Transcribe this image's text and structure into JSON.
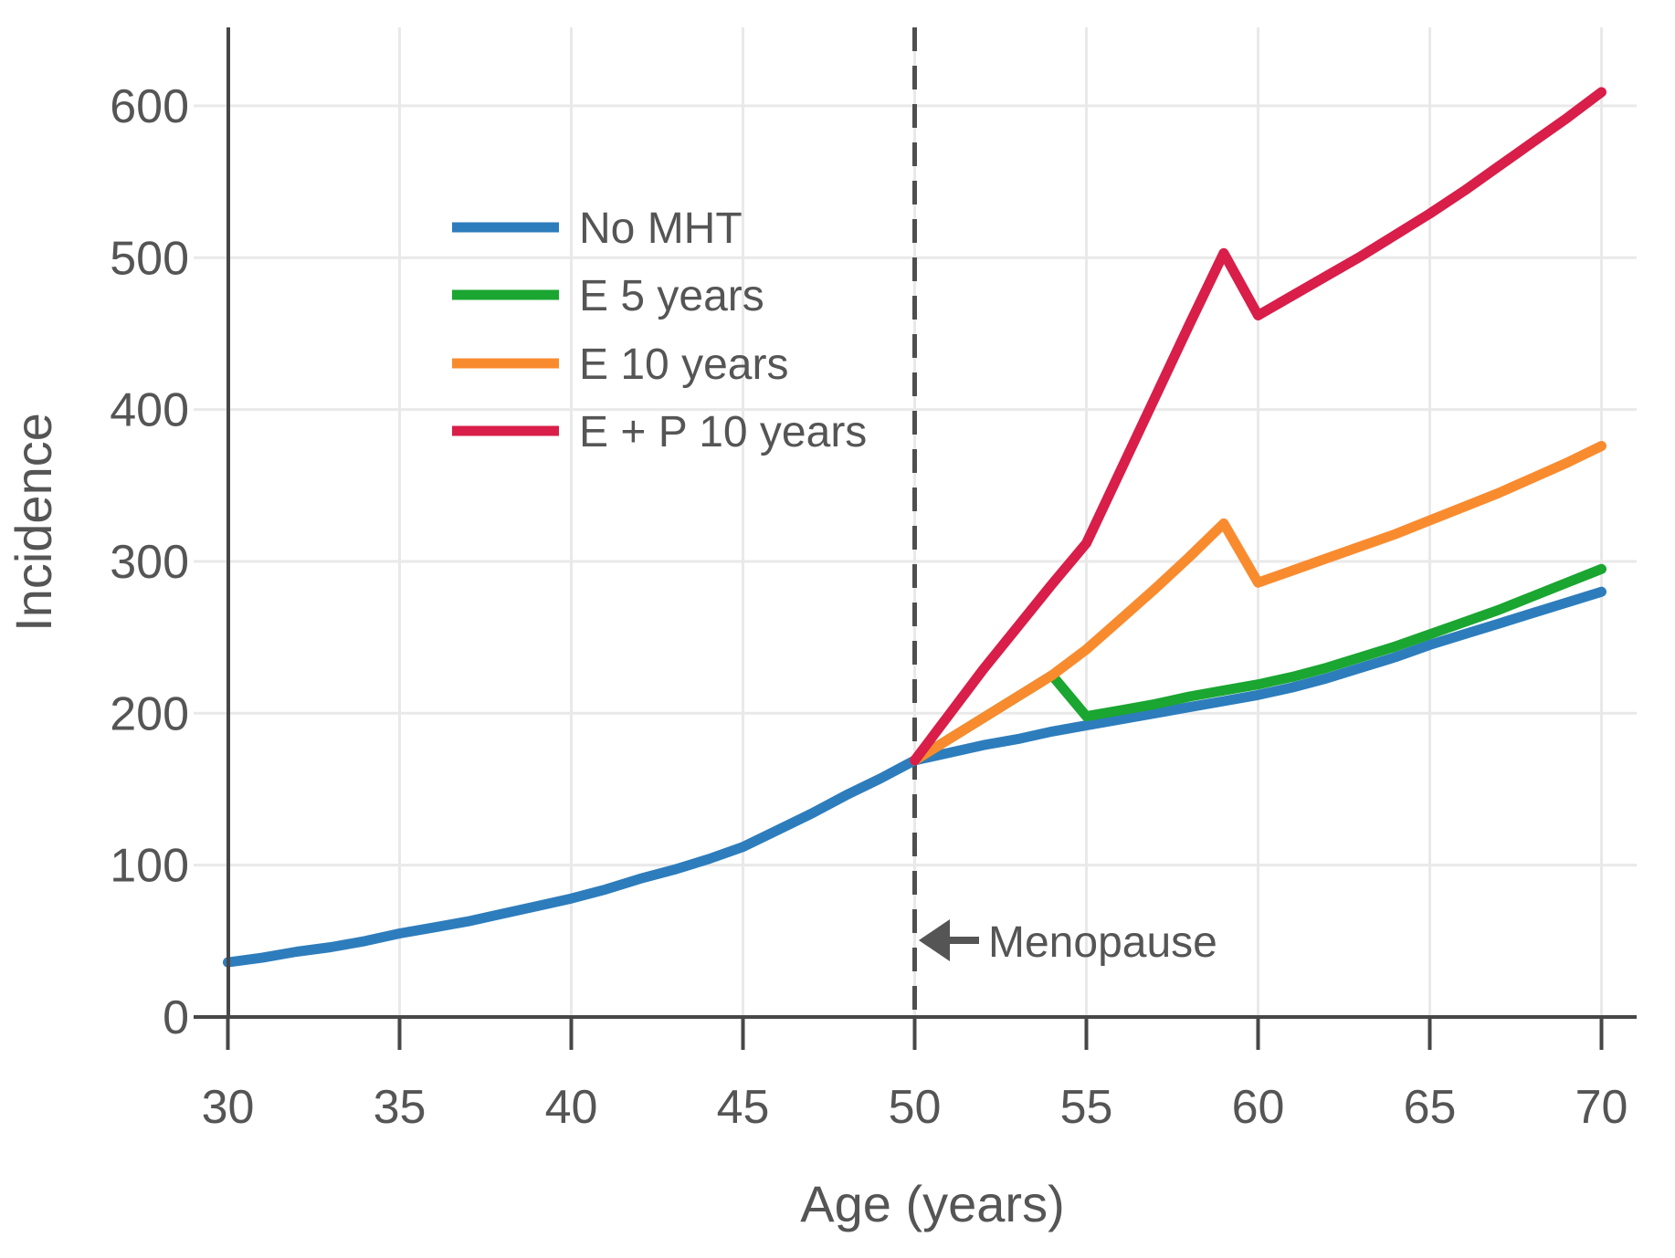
{
  "chart_data": {
    "type": "line",
    "title": "",
    "xlabel": "Age (years)",
    "ylabel": "Incidence",
    "x_ticks": [
      30,
      35,
      40,
      45,
      50,
      55,
      60,
      65,
      70
    ],
    "y_ticks": [
      0,
      100,
      200,
      300,
      400,
      500,
      600
    ],
    "xlim": [
      30,
      71
    ],
    "ylim": [
      0,
      651
    ],
    "grid": true,
    "legend_position": "upper-left-inside",
    "annotation": {
      "label": "Menopause",
      "arrow": "left-arrow",
      "x": 50,
      "y": 50
    },
    "menopause_line": {
      "x": 50,
      "style": "dashed"
    },
    "series": [
      {
        "name": "No MHT",
        "color": "#2d7dbc",
        "x": [
          30,
          31,
          32,
          33,
          34,
          35,
          36,
          37,
          38,
          39,
          40,
          41,
          42,
          43,
          44,
          45,
          46,
          47,
          48,
          49,
          50,
          51,
          52,
          53,
          54,
          55,
          56,
          57,
          58,
          59,
          60,
          61,
          62,
          63,
          64,
          65,
          66,
          67,
          68,
          69,
          70
        ],
        "y": [
          36,
          39,
          43,
          46,
          50,
          55,
          59,
          63,
          68,
          73,
          78,
          84,
          91,
          97,
          104,
          112,
          123,
          134,
          146,
          157,
          169,
          174,
          179,
          183,
          188,
          192,
          196,
          200,
          204,
          208,
          212,
          217,
          223,
          230,
          237,
          245,
          252,
          259,
          266,
          273,
          280
        ]
      },
      {
        "name": "E 5 years",
        "color": "#1aa630",
        "x": [
          50,
          51,
          52,
          53,
          54,
          55,
          56,
          57,
          58,
          59,
          60,
          61,
          62,
          63,
          64,
          65,
          66,
          67,
          68,
          69,
          70
        ],
        "y": [
          169,
          183,
          197,
          211,
          225,
          198,
          202,
          206,
          211,
          215,
          219,
          224,
          230,
          237,
          244,
          252,
          260,
          268,
          277,
          286,
          295
        ]
      },
      {
        "name": "E 10 years",
        "color": "#f98b2f",
        "x": [
          50,
          51,
          52,
          53,
          54,
          55,
          56,
          57,
          58,
          59,
          60,
          61,
          62,
          63,
          64,
          65,
          66,
          67,
          68,
          69,
          70
        ],
        "y": [
          169,
          183,
          197,
          211,
          225,
          242,
          262,
          282,
          303,
          325,
          286,
          294,
          302,
          310,
          318,
          327,
          336,
          345,
          355,
          365,
          376
        ]
      },
      {
        "name": "E + P 10 years",
        "color": "#d81e49",
        "x": [
          50,
          51,
          52,
          53,
          54,
          55,
          56,
          57,
          58,
          59,
          60,
          61,
          62,
          63,
          64,
          65,
          66,
          67,
          68,
          69,
          70
        ],
        "y": [
          169,
          199,
          229,
          257,
          285,
          312,
          360,
          408,
          456,
          503,
          462,
          475,
          488,
          501,
          515,
          529,
          544,
          560,
          576,
          592,
          609
        ]
      }
    ],
    "colors": {
      "text": "#555555",
      "axis": "#474747",
      "gridline": "#e9e9e9",
      "tick_stub": "#e0e0e0",
      "dashed_line": "#4f4f4f",
      "annotation": "#555555",
      "background": "#ffffff"
    }
  }
}
